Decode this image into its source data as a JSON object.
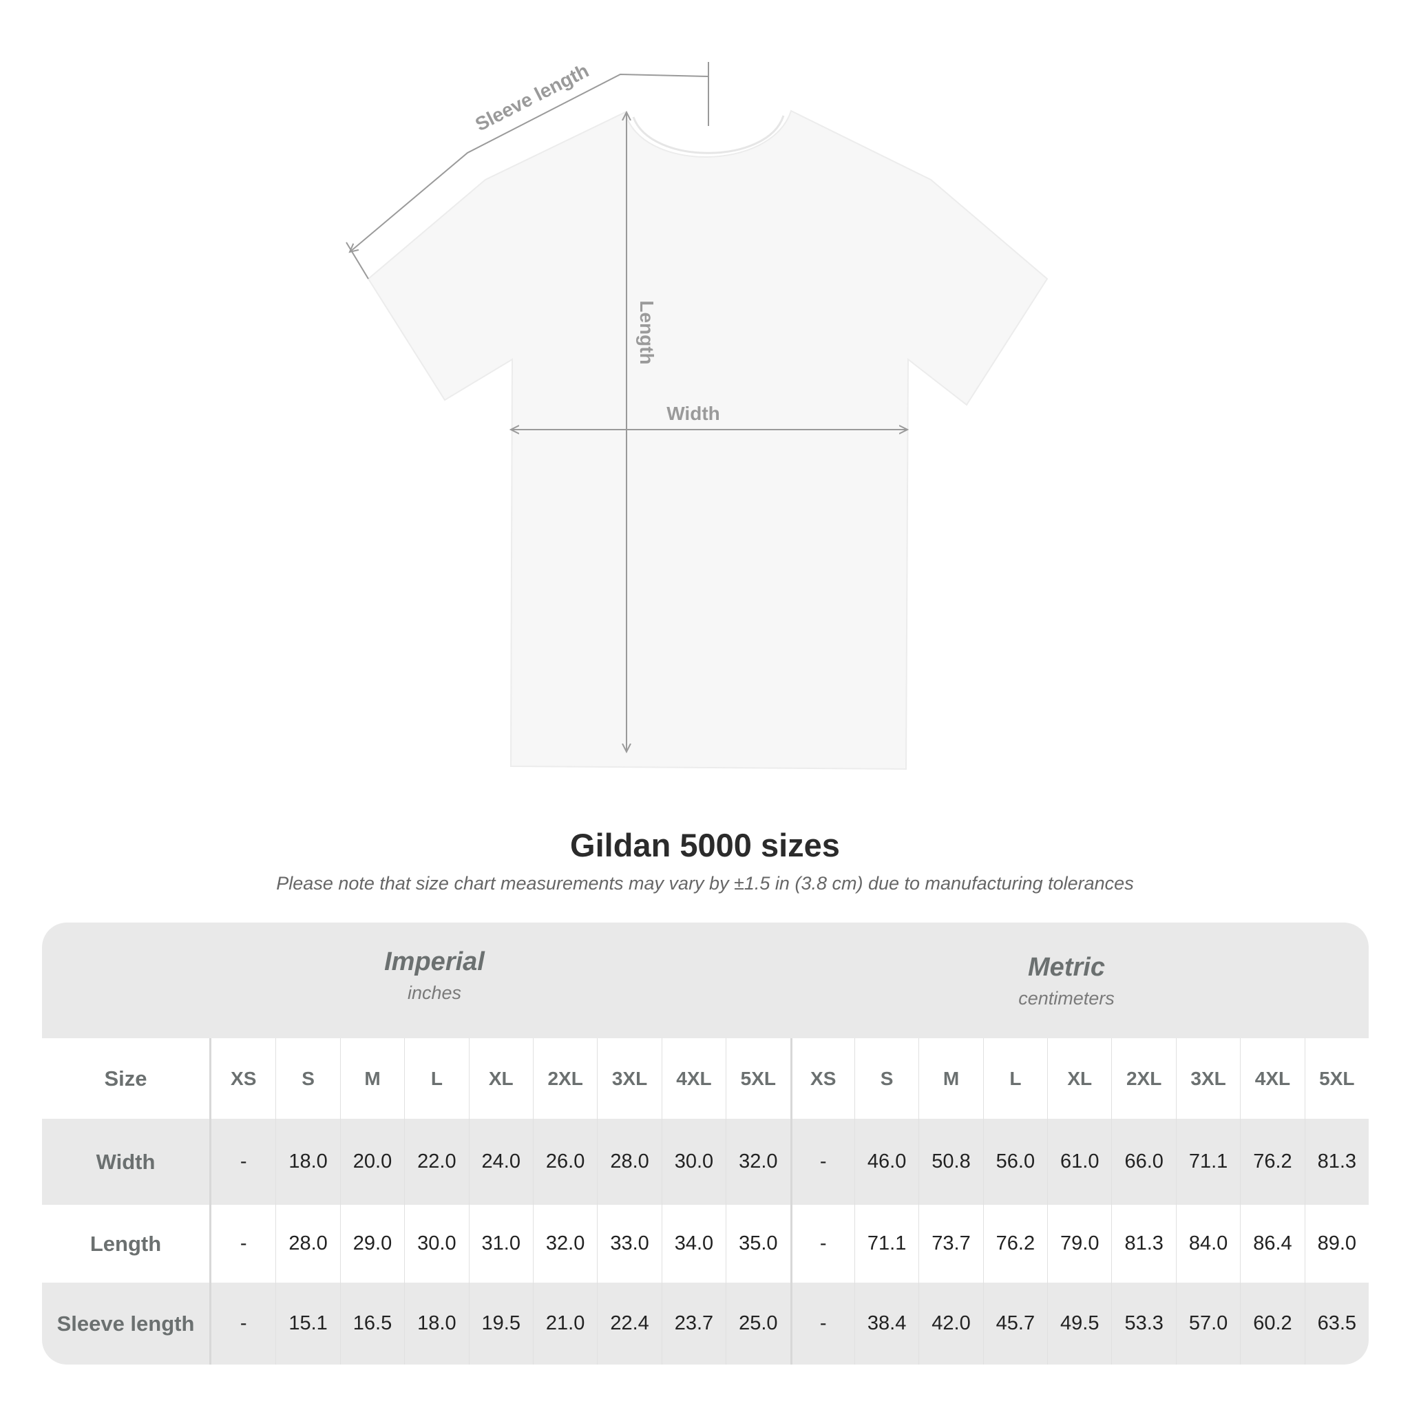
{
  "diagram": {
    "labels": {
      "sleeve_length": "Sleeve length",
      "length": "Length",
      "width": "Width"
    },
    "shirt_color": "#f7f7f7",
    "line_color": "#9a9a9a"
  },
  "title": "Gildan 5000 sizes",
  "note": "Please note that size chart measurements may vary by ±1.5 in (3.8 cm) due to manufacturing tolerances",
  "table": {
    "imperial": {
      "name": "Imperial",
      "unit": "inches"
    },
    "metric": {
      "name": "Metric",
      "unit": "centimeters"
    },
    "size_label": "Size",
    "sizes": [
      "XS",
      "S",
      "M",
      "L",
      "XL",
      "2XL",
      "3XL",
      "4XL",
      "5XL"
    ],
    "rows": [
      {
        "label": "Width",
        "imperial": [
          "-",
          "18.0",
          "20.0",
          "22.0",
          "24.0",
          "26.0",
          "28.0",
          "30.0",
          "32.0"
        ],
        "metric": [
          "-",
          "46.0",
          "50.8",
          "56.0",
          "61.0",
          "66.0",
          "71.1",
          "76.2",
          "81.3"
        ]
      },
      {
        "label": "Length",
        "imperial": [
          "-",
          "28.0",
          "29.0",
          "30.0",
          "31.0",
          "32.0",
          "33.0",
          "34.0",
          "35.0"
        ],
        "metric": [
          "-",
          "71.1",
          "73.7",
          "76.2",
          "79.0",
          "81.3",
          "84.0",
          "86.4",
          "89.0"
        ]
      },
      {
        "label": "Sleeve length",
        "imperial": [
          "-",
          "15.1",
          "16.5",
          "18.0",
          "19.5",
          "21.0",
          "22.4",
          "23.7",
          "25.0"
        ],
        "metric": [
          "-",
          "38.4",
          "42.0",
          "45.7",
          "49.5",
          "53.3",
          "57.0",
          "60.2",
          "63.5"
        ]
      }
    ]
  }
}
